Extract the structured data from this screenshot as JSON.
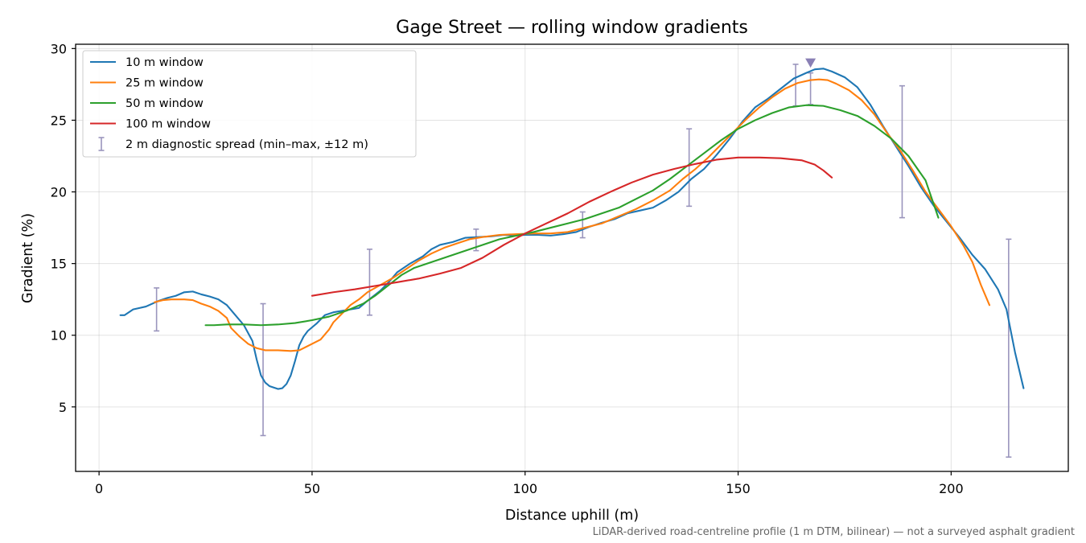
{
  "chart_data": {
    "type": "line",
    "title": "Gage Street — rolling window gradients",
    "xlabel": "Distance uphill (m)",
    "ylabel": "Gradient (%)",
    "xlim": [
      -5.5,
      227.5
    ],
    "ylim": [
      0.5,
      30.3
    ],
    "xticks": [
      0,
      50,
      100,
      150,
      200
    ],
    "yticks": [
      5,
      10,
      15,
      20,
      25,
      30
    ],
    "grid": true,
    "legend_position": "top-left",
    "footnote": "LiDAR-derived road-centreline profile (1 m DTM, bilinear) — not a surveyed asphalt gradient",
    "series": [
      {
        "name": "10 m window",
        "color": "#1f77b4",
        "points": [
          [
            5,
            11.4
          ],
          [
            6,
            11.4
          ],
          [
            8,
            11.8
          ],
          [
            11,
            12.0
          ],
          [
            14,
            12.4
          ],
          [
            16,
            12.6
          ],
          [
            18,
            12.75
          ],
          [
            20,
            13.0
          ],
          [
            22,
            13.05
          ],
          [
            24,
            12.85
          ],
          [
            26,
            12.7
          ],
          [
            28,
            12.5
          ],
          [
            30,
            12.1
          ],
          [
            32,
            11.4
          ],
          [
            34,
            10.7
          ],
          [
            36,
            9.6
          ],
          [
            37,
            8.3
          ],
          [
            38,
            7.2
          ],
          [
            39,
            6.7
          ],
          [
            40,
            6.45
          ],
          [
            42,
            6.25
          ],
          [
            43,
            6.3
          ],
          [
            44,
            6.6
          ],
          [
            45,
            7.2
          ],
          [
            46,
            8.2
          ],
          [
            47,
            9.3
          ],
          [
            48,
            9.9
          ],
          [
            49,
            10.3
          ],
          [
            51,
            10.8
          ],
          [
            53,
            11.4
          ],
          [
            55,
            11.6
          ],
          [
            57,
            11.7
          ],
          [
            59,
            11.8
          ],
          [
            61,
            11.9
          ],
          [
            63,
            12.4
          ],
          [
            66,
            13.1
          ],
          [
            68,
            13.7
          ],
          [
            70,
            14.4
          ],
          [
            73,
            15.0
          ],
          [
            76,
            15.5
          ],
          [
            78,
            16.0
          ],
          [
            80,
            16.3
          ],
          [
            83,
            16.5
          ],
          [
            86,
            16.8
          ],
          [
            89,
            16.85
          ],
          [
            92,
            16.9
          ],
          [
            95,
            17.0
          ],
          [
            98,
            16.95
          ],
          [
            100,
            17.0
          ],
          [
            103,
            17.0
          ],
          [
            106,
            16.95
          ],
          [
            109,
            17.05
          ],
          [
            112,
            17.2
          ],
          [
            115,
            17.55
          ],
          [
            118,
            17.85
          ],
          [
            121,
            18.1
          ],
          [
            124,
            18.5
          ],
          [
            127,
            18.7
          ],
          [
            130,
            18.9
          ],
          [
            133,
            19.4
          ],
          [
            136,
            20.0
          ],
          [
            139,
            20.9
          ],
          [
            142,
            21.6
          ],
          [
            145,
            22.6
          ],
          [
            148,
            23.7
          ],
          [
            151,
            24.9
          ],
          [
            154,
            25.9
          ],
          [
            157,
            26.5
          ],
          [
            160,
            27.2
          ],
          [
            163,
            27.9
          ],
          [
            166,
            28.3
          ],
          [
            168,
            28.55
          ],
          [
            170,
            28.6
          ],
          [
            172,
            28.4
          ],
          [
            175,
            28.0
          ],
          [
            178,
            27.3
          ],
          [
            181,
            26.1
          ],
          [
            184,
            24.6
          ],
          [
            187,
            23.2
          ],
          [
            190,
            21.8
          ],
          [
            193,
            20.3
          ],
          [
            196,
            19.0
          ],
          [
            199,
            17.9
          ],
          [
            202,
            16.8
          ],
          [
            205,
            15.6
          ],
          [
            208,
            14.6
          ],
          [
            211,
            13.2
          ],
          [
            213,
            11.8
          ],
          [
            215,
            8.8
          ],
          [
            217,
            6.3
          ]
        ]
      },
      {
        "name": "25 m window",
        "color": "#ff7f0e",
        "points": [
          [
            13,
            12.3
          ],
          [
            15,
            12.45
          ],
          [
            17,
            12.5
          ],
          [
            20,
            12.5
          ],
          [
            22,
            12.45
          ],
          [
            24,
            12.2
          ],
          [
            26,
            12.0
          ],
          [
            28,
            11.7
          ],
          [
            30,
            11.2
          ],
          [
            31,
            10.5
          ],
          [
            33,
            9.9
          ],
          [
            35,
            9.4
          ],
          [
            37,
            9.1
          ],
          [
            39,
            8.95
          ],
          [
            42,
            8.95
          ],
          [
            45,
            8.9
          ],
          [
            47,
            8.95
          ],
          [
            50,
            9.4
          ],
          [
            52,
            9.7
          ],
          [
            54,
            10.4
          ],
          [
            55,
            10.9
          ],
          [
            57,
            11.5
          ],
          [
            59,
            12.1
          ],
          [
            61,
            12.5
          ],
          [
            63,
            13.0
          ],
          [
            66,
            13.5
          ],
          [
            69,
            14.0
          ],
          [
            72,
            14.6
          ],
          [
            75,
            15.2
          ],
          [
            78,
            15.7
          ],
          [
            81,
            16.1
          ],
          [
            84,
            16.4
          ],
          [
            87,
            16.7
          ],
          [
            90,
            16.85
          ],
          [
            94,
            17.0
          ],
          [
            98,
            17.05
          ],
          [
            102,
            17.1
          ],
          [
            106,
            17.1
          ],
          [
            110,
            17.2
          ],
          [
            114,
            17.5
          ],
          [
            118,
            17.8
          ],
          [
            122,
            18.3
          ],
          [
            126,
            18.8
          ],
          [
            130,
            19.4
          ],
          [
            134,
            20.1
          ],
          [
            137,
            20.9
          ],
          [
            140,
            21.6
          ],
          [
            143,
            22.4
          ],
          [
            146,
            23.3
          ],
          [
            149,
            24.2
          ],
          [
            152,
            25.1
          ],
          [
            155,
            25.9
          ],
          [
            158,
            26.6
          ],
          [
            161,
            27.2
          ],
          [
            164,
            27.6
          ],
          [
            167,
            27.8
          ],
          [
            169,
            27.85
          ],
          [
            171,
            27.8
          ],
          [
            173,
            27.55
          ],
          [
            176,
            27.1
          ],
          [
            179,
            26.4
          ],
          [
            182,
            25.4
          ],
          [
            185,
            24.1
          ],
          [
            188,
            22.9
          ],
          [
            191,
            21.5
          ],
          [
            194,
            20.0
          ],
          [
            197,
            18.8
          ],
          [
            200,
            17.6
          ],
          [
            203,
            16.2
          ],
          [
            205,
            15.1
          ],
          [
            207,
            13.5
          ],
          [
            209,
            12.1
          ]
        ]
      },
      {
        "name": "50 m window",
        "color": "#2ca02c",
        "points": [
          [
            25,
            10.7
          ],
          [
            27,
            10.7
          ],
          [
            30,
            10.75
          ],
          [
            34,
            10.75
          ],
          [
            38,
            10.7
          ],
          [
            42,
            10.75
          ],
          [
            46,
            10.85
          ],
          [
            50,
            11.05
          ],
          [
            54,
            11.3
          ],
          [
            58,
            11.7
          ],
          [
            62,
            12.2
          ],
          [
            65,
            12.8
          ],
          [
            68,
            13.5
          ],
          [
            71,
            14.2
          ],
          [
            74,
            14.7
          ],
          [
            78,
            15.1
          ],
          [
            82,
            15.5
          ],
          [
            86,
            15.9
          ],
          [
            90,
            16.3
          ],
          [
            94,
            16.7
          ],
          [
            98,
            16.95
          ],
          [
            102,
            17.2
          ],
          [
            106,
            17.5
          ],
          [
            110,
            17.8
          ],
          [
            114,
            18.1
          ],
          [
            118,
            18.5
          ],
          [
            122,
            18.9
          ],
          [
            126,
            19.5
          ],
          [
            130,
            20.1
          ],
          [
            134,
            20.9
          ],
          [
            138,
            21.8
          ],
          [
            142,
            22.7
          ],
          [
            146,
            23.6
          ],
          [
            150,
            24.4
          ],
          [
            154,
            25.0
          ],
          [
            158,
            25.5
          ],
          [
            162,
            25.9
          ],
          [
            166,
            26.05
          ],
          [
            170,
            26.0
          ],
          [
            174,
            25.7
          ],
          [
            178,
            25.3
          ],
          [
            182,
            24.6
          ],
          [
            186,
            23.7
          ],
          [
            190,
            22.5
          ],
          [
            194,
            20.8
          ],
          [
            197,
            18.2
          ]
        ]
      },
      {
        "name": "100 m window",
        "color": "#d62728",
        "points": [
          [
            50,
            12.75
          ],
          [
            55,
            13.0
          ],
          [
            60,
            13.2
          ],
          [
            65,
            13.45
          ],
          [
            70,
            13.7
          ],
          [
            75,
            13.95
          ],
          [
            80,
            14.3
          ],
          [
            85,
            14.7
          ],
          [
            90,
            15.4
          ],
          [
            95,
            16.3
          ],
          [
            100,
            17.1
          ],
          [
            105,
            17.8
          ],
          [
            110,
            18.5
          ],
          [
            115,
            19.3
          ],
          [
            120,
            20.0
          ],
          [
            125,
            20.65
          ],
          [
            130,
            21.2
          ],
          [
            135,
            21.6
          ],
          [
            140,
            21.95
          ],
          [
            145,
            22.25
          ],
          [
            150,
            22.4
          ],
          [
            155,
            22.4
          ],
          [
            160,
            22.35
          ],
          [
            165,
            22.2
          ],
          [
            168,
            21.9
          ],
          [
            170,
            21.5
          ],
          [
            172,
            21.0
          ]
        ]
      }
    ],
    "errorbars": {
      "name": "2 m diagnostic spread (min–max, ±12 m)",
      "color": "#9a95bd",
      "bars": [
        {
          "x": 13.5,
          "ymin": 10.3,
          "ymax": 13.3
        },
        {
          "x": 38.5,
          "ymin": 3.0,
          "ymax": 12.2
        },
        {
          "x": 63.5,
          "ymin": 11.4,
          "ymax": 16.0
        },
        {
          "x": 88.5,
          "ymin": 15.9,
          "ymax": 17.4
        },
        {
          "x": 113.5,
          "ymin": 16.8,
          "ymax": 18.6
        },
        {
          "x": 138.5,
          "ymin": 19.0,
          "ymax": 24.4
        },
        {
          "x": 163.5,
          "ymin": 26.0,
          "ymax": 28.9
        },
        {
          "x": 167.0,
          "ymin": 26.1,
          "ymax": 28.3
        },
        {
          "x": 188.5,
          "ymin": 18.2,
          "ymax": 27.4
        },
        {
          "x": 213.5,
          "ymin": 1.5,
          "ymax": 16.7
        }
      ]
    },
    "peak_marker": {
      "x": 167,
      "y": 29.0,
      "color": "#8a80b5",
      "shape": "down-triangle"
    }
  }
}
